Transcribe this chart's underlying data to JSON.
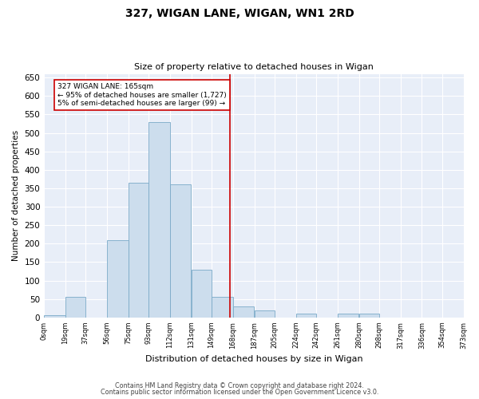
{
  "title": "327, WIGAN LANE, WIGAN, WN1 2RD",
  "subtitle": "Size of property relative to detached houses in Wigan",
  "xlabel": "Distribution of detached houses by size in Wigan",
  "ylabel": "Number of detached properties",
  "bar_color": "#ccdded",
  "bar_edge_color": "#7aaac8",
  "background_color": "#e8eef8",
  "grid_color": "#ffffff",
  "ref_line_x": 165,
  "ref_line_color": "#cc0000",
  "bin_edges": [
    0,
    19,
    37,
    56,
    75,
    93,
    112,
    131,
    149,
    168,
    187,
    205,
    224,
    242,
    261,
    280,
    298,
    317,
    336,
    354,
    373
  ],
  "bin_labels": [
    "0sqm",
    "19sqm",
    "37sqm",
    "56sqm",
    "75sqm",
    "93sqm",
    "112sqm",
    "131sqm",
    "149sqm",
    "168sqm",
    "187sqm",
    "205sqm",
    "224sqm",
    "242sqm",
    "261sqm",
    "280sqm",
    "298sqm",
    "317sqm",
    "336sqm",
    "354sqm",
    "373sqm"
  ],
  "bar_heights": [
    5,
    55,
    0,
    210,
    365,
    530,
    360,
    130,
    55,
    30,
    20,
    0,
    10,
    0,
    10,
    10,
    0,
    0,
    0,
    0
  ],
  "ylim": [
    0,
    660
  ],
  "yticks": [
    0,
    50,
    100,
    150,
    200,
    250,
    300,
    350,
    400,
    450,
    500,
    550,
    600,
    650
  ],
  "annotation_text": "327 WIGAN LANE: 165sqm\n← 95% of detached houses are smaller (1,727)\n5% of semi-detached houses are larger (99) →",
  "annotation_box_color": "#cc0000",
  "footer1": "Contains HM Land Registry data © Crown copyright and database right 2024.",
  "footer2": "Contains public sector information licensed under the Open Government Licence v3.0."
}
